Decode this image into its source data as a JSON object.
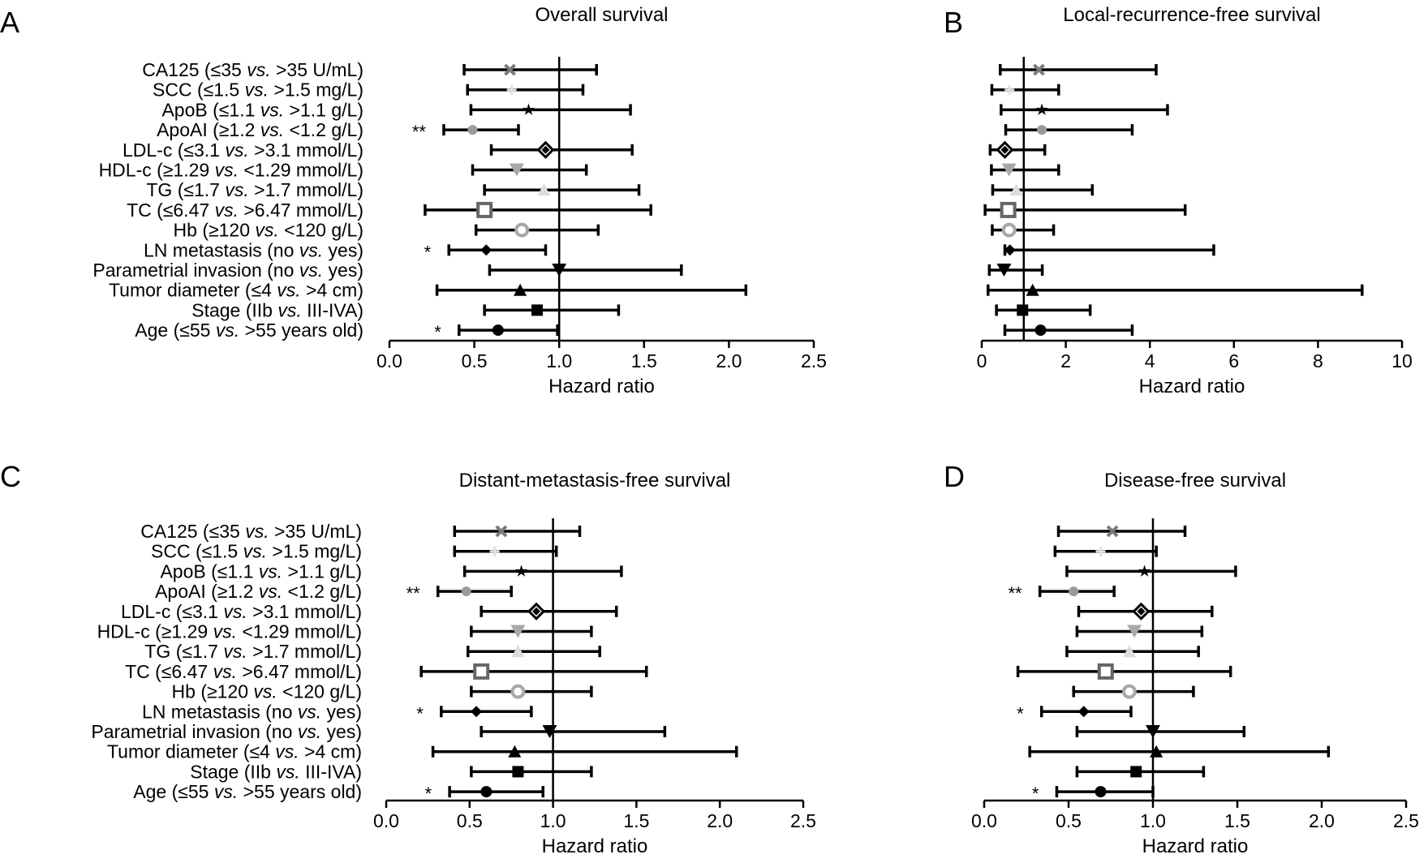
{
  "figure": {
    "row_labels": [
      [
        "CA125 (≤35 ",
        "vs.",
        " >35 U/mL)"
      ],
      [
        "SCC (≤1.5 ",
        "vs.",
        " >1.5 mg/L)"
      ],
      [
        "ApoB (≤1.1 ",
        "vs.",
        " >1.1 g/L)"
      ],
      [
        "ApoAI (≥1.2 ",
        "vs.",
        " <1.2 g/L)"
      ],
      [
        "LDL-c (≤3.1 ",
        "vs.",
        " >3.1 mmol/L)"
      ],
      [
        "HDL-c (≥1.29 ",
        "vs.",
        " <1.29 mmol/L)"
      ],
      [
        "TG (≤1.7 ",
        "vs.",
        " >1.7 mmol/L)"
      ],
      [
        "TC (≤6.47 ",
        "vs.",
        " >6.47 mmol/L)"
      ],
      [
        "Hb (≥120 ",
        "vs.",
        " <120 g/L)"
      ],
      [
        "LN metastasis (no ",
        "vs.",
        " yes)"
      ],
      [
        "Parametrial invasion (no ",
        "vs.",
        " yes)"
      ],
      [
        "Tumor diameter (≤4 ",
        "vs.",
        " >4 cm)"
      ],
      [
        "Stage (IIb ",
        "vs.",
        " III-IVA)"
      ],
      [
        "Age (≤55 ",
        "vs.",
        " >55 years old)"
      ]
    ],
    "marker_styles": [
      {
        "shape": "x",
        "color": "#7a7a7a"
      },
      {
        "shape": "plus",
        "color": "#e0e0e0"
      },
      {
        "shape": "star",
        "color": "#000000"
      },
      {
        "shape": "circle-small",
        "color": "#9a9a9a"
      },
      {
        "shape": "diamond-open",
        "color": "#000000"
      },
      {
        "shape": "triangle-down-light",
        "color": "#a8a8a8"
      },
      {
        "shape": "triangle-up-light",
        "color": "#dcdcdc"
      },
      {
        "shape": "square-open",
        "color": "#666666"
      },
      {
        "shape": "circle-open",
        "color": "#a8a8a8"
      },
      {
        "shape": "diamond",
        "color": "#000000"
      },
      {
        "shape": "triangle-down",
        "color": "#000000"
      },
      {
        "shape": "triangle-up",
        "color": "#000000"
      },
      {
        "shape": "square",
        "color": "#000000"
      },
      {
        "shape": "circle",
        "color": "#000000"
      }
    ]
  },
  "chart_data": [
    {
      "type": "forest",
      "panel_letter": "A",
      "title": "Overall survival",
      "xlabel": "Hazard ratio",
      "xlim": [
        0,
        2.5
      ],
      "xticks": [
        "0.0",
        "0.5",
        "1.0",
        "1.5",
        "2.0",
        "2.5"
      ],
      "xtick_values": [
        0,
        0.5,
        1.0,
        1.5,
        2.0,
        2.5
      ],
      "reference_line": 1,
      "rows": [
        {
          "hr": 0.71,
          "lo": 0.44,
          "hi": 1.22,
          "sig": ""
        },
        {
          "hr": 0.72,
          "lo": 0.46,
          "hi": 1.14,
          "sig": ""
        },
        {
          "hr": 0.82,
          "lo": 0.48,
          "hi": 1.42,
          "sig": ""
        },
        {
          "hr": 0.49,
          "lo": 0.32,
          "hi": 0.76,
          "sig": "**"
        },
        {
          "hr": 0.92,
          "lo": 0.6,
          "hi": 1.43,
          "sig": ""
        },
        {
          "hr": 0.75,
          "lo": 0.49,
          "hi": 1.16,
          "sig": ""
        },
        {
          "hr": 0.91,
          "lo": 0.56,
          "hi": 1.47,
          "sig": ""
        },
        {
          "hr": 0.56,
          "lo": 0.21,
          "hi": 1.54,
          "sig": ""
        },
        {
          "hr": 0.78,
          "lo": 0.51,
          "hi": 1.23,
          "sig": ""
        },
        {
          "hr": 0.57,
          "lo": 0.35,
          "hi": 0.92,
          "sig": "*"
        },
        {
          "hr": 1.0,
          "lo": 0.59,
          "hi": 1.72,
          "sig": ""
        },
        {
          "hr": 0.77,
          "lo": 0.28,
          "hi": 2.1,
          "sig": ""
        },
        {
          "hr": 0.87,
          "lo": 0.56,
          "hi": 1.35,
          "sig": ""
        },
        {
          "hr": 0.64,
          "lo": 0.41,
          "hi": 0.99,
          "sig": "*"
        }
      ]
    },
    {
      "type": "forest",
      "panel_letter": "B",
      "title": "Local-recurrence-free survival",
      "xlabel": "Hazard ratio",
      "xlim": [
        0,
        10
      ],
      "xticks": [
        "0",
        "2",
        "4",
        "6",
        "8",
        "10"
      ],
      "xtick_values": [
        0,
        2,
        4,
        6,
        8,
        10
      ],
      "reference_line": 1,
      "rows": [
        {
          "hr": 1.36,
          "lo": 0.44,
          "hi": 4.15,
          "sig": ""
        },
        {
          "hr": 0.66,
          "lo": 0.24,
          "hi": 1.83,
          "sig": ""
        },
        {
          "hr": 1.43,
          "lo": 0.46,
          "hi": 4.42,
          "sig": ""
        },
        {
          "hr": 1.43,
          "lo": 0.57,
          "hi": 3.58,
          "sig": ""
        },
        {
          "hr": 0.55,
          "lo": 0.2,
          "hi": 1.5,
          "sig": ""
        },
        {
          "hr": 0.65,
          "lo": 0.23,
          "hi": 1.83,
          "sig": ""
        },
        {
          "hr": 0.82,
          "lo": 0.26,
          "hi": 2.63,
          "sig": ""
        },
        {
          "hr": 0.63,
          "lo": 0.08,
          "hi": 4.84,
          "sig": ""
        },
        {
          "hr": 0.65,
          "lo": 0.25,
          "hi": 1.71,
          "sig": ""
        },
        {
          "hr": 0.67,
          "lo": 0.55,
          "hi": 5.52,
          "sig": ""
        },
        {
          "hr": 0.53,
          "lo": 0.18,
          "hi": 1.44,
          "sig": ""
        },
        {
          "hr": 1.21,
          "lo": 0.15,
          "hi": 9.05,
          "sig": ""
        },
        {
          "hr": 0.97,
          "lo": 0.35,
          "hi": 2.58,
          "sig": ""
        },
        {
          "hr": 1.4,
          "lo": 0.55,
          "hi": 3.58,
          "sig": ""
        }
      ]
    },
    {
      "type": "forest",
      "panel_letter": "C",
      "title": "Distant-metastasis-free survival",
      "xlabel": "Hazard ratio",
      "xlim": [
        0,
        2.5
      ],
      "xticks": [
        "0.0",
        "0.5",
        "1.0",
        "1.5",
        "2.0",
        "2.5"
      ],
      "xtick_values": [
        0,
        0.5,
        1.0,
        1.5,
        2.0,
        2.5
      ],
      "reference_line": 1,
      "rows": [
        {
          "hr": 0.69,
          "lo": 0.41,
          "hi": 1.16,
          "sig": ""
        },
        {
          "hr": 0.65,
          "lo": 0.41,
          "hi": 1.02,
          "sig": ""
        },
        {
          "hr": 0.81,
          "lo": 0.47,
          "hi": 1.41,
          "sig": ""
        },
        {
          "hr": 0.48,
          "lo": 0.31,
          "hi": 0.75,
          "sig": "**"
        },
        {
          "hr": 0.9,
          "lo": 0.57,
          "hi": 1.38,
          "sig": ""
        },
        {
          "hr": 0.79,
          "lo": 0.51,
          "hi": 1.23,
          "sig": ""
        },
        {
          "hr": 0.79,
          "lo": 0.49,
          "hi": 1.28,
          "sig": ""
        },
        {
          "hr": 0.57,
          "lo": 0.21,
          "hi": 1.56,
          "sig": ""
        },
        {
          "hr": 0.79,
          "lo": 0.51,
          "hi": 1.23,
          "sig": ""
        },
        {
          "hr": 0.54,
          "lo": 0.33,
          "hi": 0.87,
          "sig": "*"
        },
        {
          "hr": 0.98,
          "lo": 0.57,
          "hi": 1.67,
          "sig": ""
        },
        {
          "hr": 0.77,
          "lo": 0.28,
          "hi": 2.1,
          "sig": ""
        },
        {
          "hr": 0.79,
          "lo": 0.51,
          "hi": 1.23,
          "sig": ""
        },
        {
          "hr": 0.6,
          "lo": 0.38,
          "hi": 0.94,
          "sig": "*"
        }
      ]
    },
    {
      "type": "forest",
      "panel_letter": "D",
      "title": "Disease-free survival",
      "xlabel": "Hazard ratio",
      "xlim": [
        0,
        2.5
      ],
      "xticks": [
        "0.0",
        "0.5",
        "1.0",
        "1.5",
        "2.0",
        "2.5"
      ],
      "xtick_values": [
        0,
        0.5,
        1.0,
        1.5,
        2.0,
        2.5
      ],
      "reference_line": 1,
      "rows": [
        {
          "hr": 0.76,
          "lo": 0.44,
          "hi": 1.19,
          "sig": ""
        },
        {
          "hr": 0.69,
          "lo": 0.42,
          "hi": 1.02,
          "sig": ""
        },
        {
          "hr": 0.95,
          "lo": 0.49,
          "hi": 1.49,
          "sig": ""
        },
        {
          "hr": 0.53,
          "lo": 0.33,
          "hi": 0.77,
          "sig": "**"
        },
        {
          "hr": 0.93,
          "lo": 0.56,
          "hi": 1.35,
          "sig": ""
        },
        {
          "hr": 0.89,
          "lo": 0.55,
          "hi": 1.29,
          "sig": ""
        },
        {
          "hr": 0.86,
          "lo": 0.49,
          "hi": 1.27,
          "sig": ""
        },
        {
          "hr": 0.72,
          "lo": 0.2,
          "hi": 1.46,
          "sig": ""
        },
        {
          "hr": 0.86,
          "lo": 0.53,
          "hi": 1.24,
          "sig": ""
        },
        {
          "hr": 0.59,
          "lo": 0.34,
          "hi": 0.87,
          "sig": "*"
        },
        {
          "hr": 1.0,
          "lo": 0.55,
          "hi": 1.54,
          "sig": ""
        },
        {
          "hr": 1.02,
          "lo": 0.27,
          "hi": 2.04,
          "sig": ""
        },
        {
          "hr": 0.9,
          "lo": 0.55,
          "hi": 1.3,
          "sig": ""
        },
        {
          "hr": 0.69,
          "lo": 0.43,
          "hi": 1.0,
          "sig": "*"
        }
      ]
    }
  ]
}
